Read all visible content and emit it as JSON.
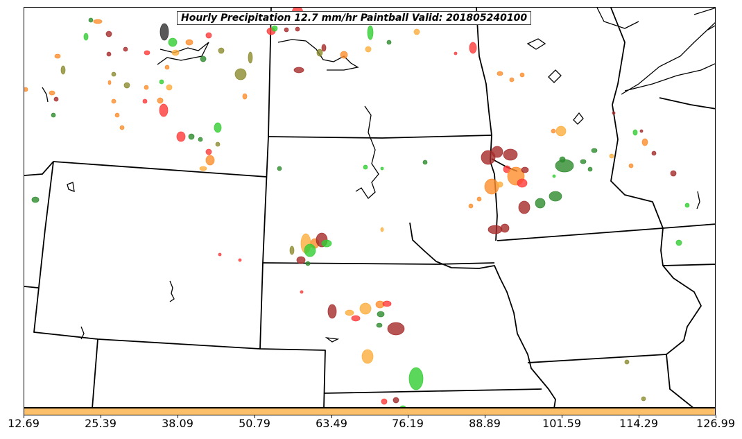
{
  "title": "Hourly Precipitation 12.7 mm/hr Paintball Valid: 201805240100",
  "colorbar": {
    "fill_color": "#fdc06a",
    "ticks": [
      "12.69",
      "25.39",
      "38.09",
      "50.79",
      "63.49",
      "76.19",
      "88.89",
      "101.59",
      "114.29",
      "126.99"
    ]
  },
  "map": {
    "border_color": "#000000",
    "paint_colors": [
      "#ff3a3a",
      "#fd8d2c",
      "#fdae3c",
      "#a52a2a",
      "#2e8b2e",
      "#32cd32",
      "#8b8b2e",
      "#2f2f2f"
    ]
  }
}
